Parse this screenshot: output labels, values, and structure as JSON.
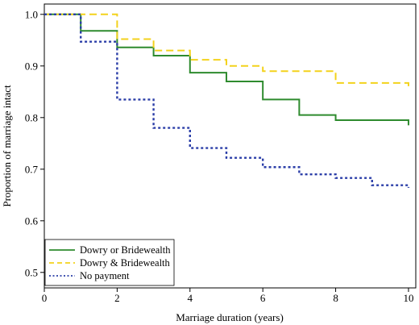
{
  "chart_data": {
    "type": "line",
    "step": true,
    "xlabel": "Marriage duration (years)",
    "ylabel": "Proportion of marriage intact",
    "xlim": [
      0,
      10.2
    ],
    "ylim": [
      0.47,
      1.02
    ],
    "xticks": [
      0,
      2,
      4,
      6,
      8,
      10
    ],
    "yticks": [
      0.5,
      0.6,
      0.7,
      0.8,
      0.9,
      1.0
    ],
    "xtick_labels": [
      "0",
      "2",
      "4",
      "6",
      "8",
      "10"
    ],
    "ytick_labels": [
      "0.5",
      "0.6",
      "0.7",
      "0.8",
      "0.9",
      "1.0"
    ],
    "grid": false,
    "legend_position": "bottom-left",
    "series": [
      {
        "name": "Dowry or Bridewealth",
        "color": "#2e8b2e",
        "dash": "solid",
        "points": [
          [
            0,
            1.0
          ],
          [
            1,
            0.968
          ],
          [
            2,
            0.936
          ],
          [
            3,
            0.92
          ],
          [
            4,
            0.887
          ],
          [
            5,
            0.87
          ],
          [
            6,
            0.835
          ],
          [
            7,
            0.805
          ],
          [
            8,
            0.795
          ],
          [
            10,
            0.785
          ]
        ]
      },
      {
        "name": "Dowry & Bridewealth",
        "color": "#f3d21c",
        "dash": "dashed",
        "points": [
          [
            0,
            1.0
          ],
          [
            2,
            0.952
          ],
          [
            3,
            0.93
          ],
          [
            4,
            0.912
          ],
          [
            5,
            0.9
          ],
          [
            6,
            0.89
          ],
          [
            8,
            0.867
          ],
          [
            10,
            0.857
          ]
        ]
      },
      {
        "name": "No payment",
        "color": "#2b3ea8",
        "dash": "dotted",
        "points": [
          [
            0,
            1.0
          ],
          [
            1,
            0.947
          ],
          [
            2,
            0.835
          ],
          [
            3,
            0.78
          ],
          [
            4,
            0.741
          ],
          [
            5,
            0.722
          ],
          [
            6,
            0.704
          ],
          [
            7,
            0.69
          ],
          [
            8,
            0.683
          ],
          [
            9,
            0.669
          ],
          [
            10,
            0.664
          ]
        ]
      }
    ]
  }
}
